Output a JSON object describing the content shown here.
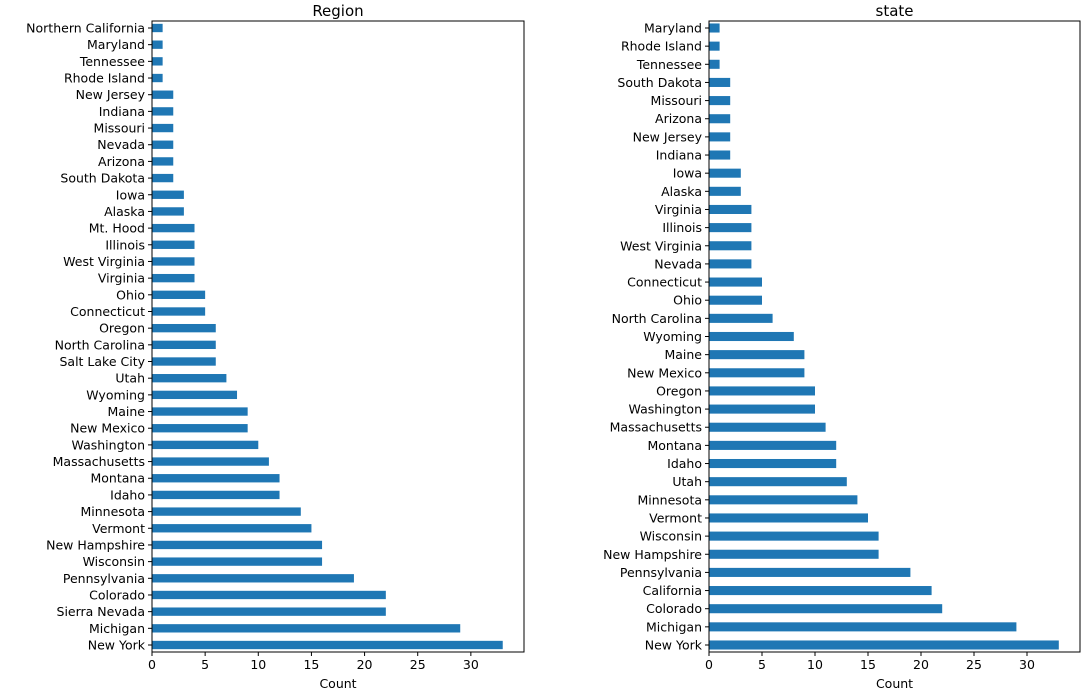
{
  "colors": {
    "bar": "#1f77b4",
    "axis": "#000000",
    "background": "#ffffff"
  },
  "chart_data": [
    {
      "type": "bar",
      "orientation": "horizontal",
      "title": "Region",
      "xlabel": "Count",
      "ylabel": "",
      "xlim": [
        0,
        35
      ],
      "xticks": [
        0,
        5,
        10,
        15,
        20,
        25,
        30
      ],
      "grid": false,
      "categories": [
        "New York",
        "Michigan",
        "Sierra Nevada",
        "Colorado",
        "Pennsylvania",
        "Wisconsin",
        "New Hampshire",
        "Vermont",
        "Minnesota",
        "Idaho",
        "Montana",
        "Massachusetts",
        "Washington",
        "New Mexico",
        "Maine",
        "Wyoming",
        "Utah",
        "Salt Lake City",
        "North Carolina",
        "Oregon",
        "Connecticut",
        "Ohio",
        "Virginia",
        "West Virginia",
        "Illinois",
        "Mt. Hood",
        "Alaska",
        "Iowa",
        "South Dakota",
        "Arizona",
        "Nevada",
        "Missouri",
        "Indiana",
        "New Jersey",
        "Rhode Island",
        "Tennessee",
        "Maryland",
        "Northern California"
      ],
      "values": [
        33,
        29,
        22,
        22,
        19,
        16,
        16,
        15,
        14,
        12,
        12,
        11,
        10,
        9,
        9,
        8,
        7,
        6,
        6,
        6,
        5,
        5,
        4,
        4,
        4,
        4,
        3,
        3,
        2,
        2,
        2,
        2,
        2,
        2,
        1,
        1,
        1,
        1
      ]
    },
    {
      "type": "bar",
      "orientation": "horizontal",
      "title": "state",
      "xlabel": "Count",
      "ylabel": "",
      "xlim": [
        0,
        35
      ],
      "xticks": [
        0,
        5,
        10,
        15,
        20,
        25,
        30
      ],
      "grid": false,
      "categories": [
        "New York",
        "Michigan",
        "Colorado",
        "California",
        "Pennsylvania",
        "New Hampshire",
        "Wisconsin",
        "Vermont",
        "Minnesota",
        "Utah",
        "Idaho",
        "Montana",
        "Massachusetts",
        "Washington",
        "Oregon",
        "New Mexico",
        "Maine",
        "Wyoming",
        "North Carolina",
        "Ohio",
        "Connecticut",
        "Nevada",
        "West Virginia",
        "Illinois",
        "Virginia",
        "Alaska",
        "Iowa",
        "Indiana",
        "New Jersey",
        "Arizona",
        "Missouri",
        "South Dakota",
        "Tennessee",
        "Rhode Island",
        "Maryland"
      ],
      "values": [
        33,
        29,
        22,
        21,
        19,
        16,
        16,
        15,
        14,
        13,
        12,
        12,
        11,
        10,
        10,
        9,
        9,
        8,
        6,
        5,
        5,
        4,
        4,
        4,
        4,
        3,
        3,
        2,
        2,
        2,
        2,
        2,
        1,
        1,
        1
      ]
    }
  ]
}
